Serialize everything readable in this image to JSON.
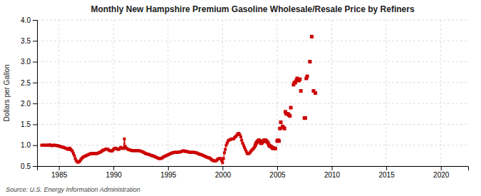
{
  "chart_data": {
    "type": "line",
    "title": "Monthly New Hampshire Premium Gasoline Wholesale/Resale Price by Refiners",
    "y_label": "Dollars per Gallon",
    "annotations": [
      "Source: U.S. Energy Information Administration"
    ],
    "xlim": [
      1983.0,
      2022.5
    ],
    "ylim": [
      0.5,
      4.0
    ],
    "xticks": [
      1985,
      1990,
      1995,
      2000,
      2005,
      2010,
      2015,
      2020
    ],
    "yticks": [
      0.5,
      {
        "value": 1.0,
        "label": "1.0"
      },
      1.5,
      {
        "value": 2.0,
        "label": "2.0"
      },
      2.5,
      {
        "value": 3.0,
        "label": "3.0"
      },
      3.5,
      {
        "value": 4.0,
        "label": "4.0"
      }
    ],
    "grid": true,
    "series": [
      {
        "type": "line",
        "marker": "square",
        "color": "#cc0000",
        "x": [
          1983.42,
          1983.5,
          1983.58,
          1983.67,
          1983.75,
          1983.83,
          1983.92,
          1984.0,
          1984.08,
          1984.17,
          1984.25,
          1984.33,
          1984.42,
          1984.5,
          1984.58,
          1984.67,
          1984.75,
          1984.83,
          1984.92,
          1985.0,
          1985.08,
          1985.17,
          1985.25,
          1985.33,
          1985.42,
          1985.5,
          1985.58,
          1985.67,
          1985.75,
          1985.83,
          1985.92,
          1986.0,
          1986.08,
          1986.17,
          1986.25,
          1986.33,
          1986.42,
          1986.5,
          1986.58,
          1986.67,
          1986.75,
          1986.83,
          1986.92,
          1987.0,
          1987.08,
          1987.17,
          1987.25,
          1987.33,
          1987.42,
          1987.5,
          1987.58,
          1987.67,
          1987.75,
          1987.83,
          1987.92,
          1988.0,
          1988.08,
          1988.17,
          1988.25,
          1988.33,
          1988.42,
          1988.5,
          1988.58,
          1988.67,
          1988.75,
          1988.83,
          1988.92,
          1989.0,
          1989.08,
          1989.17,
          1989.25,
          1989.33,
          1989.42,
          1989.5,
          1989.58,
          1989.67,
          1989.75,
          1989.83,
          1989.92,
          1990.0,
          1990.08,
          1990.17,
          1990.25,
          1990.33,
          1990.42,
          1990.5,
          1990.58,
          1990.67,
          1990.75,
          1990.83,
          1990.92,
          1991.0,
          1991.08,
          1991.17,
          1991.25,
          1991.33,
          1991.42,
          1991.5,
          1991.58,
          1991.67,
          1991.75,
          1991.83,
          1991.92,
          1992.0,
          1992.08,
          1992.17,
          1992.25,
          1992.33,
          1992.42,
          1992.5,
          1992.58,
          1992.67,
          1992.75,
          1992.83,
          1992.92,
          1993.0,
          1993.08,
          1993.17,
          1993.25,
          1993.33,
          1993.42,
          1993.5,
          1993.58,
          1993.67,
          1993.75,
          1993.83,
          1993.92,
          1994.0,
          1994.08,
          1994.17,
          1994.25,
          1994.33,
          1994.42,
          1994.5,
          1994.58,
          1994.67,
          1994.75,
          1994.83,
          1994.92,
          1995.0,
          1995.08,
          1995.17,
          1995.25,
          1995.33,
          1995.42,
          1995.5,
          1995.58,
          1995.67,
          1995.75,
          1995.83,
          1995.92,
          1996.0,
          1996.08,
          1996.17,
          1996.25,
          1996.33,
          1996.42,
          1996.5,
          1996.58,
          1996.67,
          1996.75,
          1996.83,
          1996.92,
          1997.0,
          1997.08,
          1997.17,
          1997.25,
          1997.33,
          1997.42,
          1997.5,
          1997.58,
          1997.67,
          1997.75,
          1997.83,
          1997.92,
          1998.0,
          1998.08,
          1998.17,
          1998.25,
          1998.33,
          1998.42,
          1998.5,
          1998.58,
          1998.67,
          1998.75,
          1998.83,
          1998.92,
          1999.0,
          1999.08,
          1999.17,
          1999.25,
          1999.33,
          1999.42,
          1999.5,
          1999.58,
          1999.67,
          1999.75,
          1999.83,
          1999.92,
          2000.0,
          2000.08,
          2000.17,
          2000.25,
          2000.33,
          2000.42,
          2000.5,
          2000.58,
          2000.67,
          2000.75,
          2000.83,
          2000.92,
          2001.0,
          2001.08,
          2001.17,
          2001.25,
          2001.33,
          2001.42,
          2001.5,
          2001.58,
          2001.67,
          2001.75,
          2001.83,
          2001.92,
          2002.0,
          2002.08,
          2002.17,
          2002.25,
          2002.33,
          2002.42,
          2002.5,
          2002.58,
          2002.67,
          2002.75,
          2002.83,
          2002.92
        ],
        "values": [
          1.0,
          1.0,
          1.0,
          1.0,
          1.0,
          1.0,
          1.0,
          1.0,
          1.0,
          1.01,
          1.0,
          0.99,
          0.99,
          1.0,
          1.0,
          1.0,
          0.99,
          0.99,
          0.99,
          0.98,
          0.97,
          0.97,
          0.96,
          0.95,
          0.95,
          0.94,
          0.93,
          0.92,
          0.92,
          0.9,
          0.9,
          0.93,
          0.9,
          0.88,
          0.85,
          0.8,
          0.75,
          0.68,
          0.63,
          0.61,
          0.59,
          0.6,
          0.62,
          0.65,
          0.68,
          0.7,
          0.72,
          0.73,
          0.74,
          0.75,
          0.76,
          0.77,
          0.78,
          0.79,
          0.8,
          0.8,
          0.8,
          0.8,
          0.8,
          0.8,
          0.8,
          0.8,
          0.81,
          0.82,
          0.83,
          0.84,
          0.85,
          0.88,
          0.88,
          0.89,
          0.9,
          0.91,
          0.91,
          0.9,
          0.88,
          0.87,
          0.86,
          0.86,
          0.87,
          0.9,
          0.92,
          0.93,
          0.92,
          0.91,
          0.9,
          0.9,
          0.92,
          0.95,
          0.93,
          0.93,
          0.92,
          1.15,
          0.97,
          0.93,
          0.92,
          0.9,
          0.89,
          0.89,
          0.88,
          0.87,
          0.87,
          0.87,
          0.87,
          0.87,
          0.87,
          0.87,
          0.87,
          0.87,
          0.86,
          0.86,
          0.85,
          0.84,
          0.83,
          0.82,
          0.8,
          0.8,
          0.79,
          0.78,
          0.78,
          0.77,
          0.76,
          0.75,
          0.75,
          0.74,
          0.73,
          0.72,
          0.71,
          0.7,
          0.69,
          0.68,
          0.68,
          0.68,
          0.69,
          0.7,
          0.72,
          0.73,
          0.74,
          0.75,
          0.76,
          0.77,
          0.78,
          0.79,
          0.8,
          0.81,
          0.82,
          0.82,
          0.83,
          0.83,
          0.83,
          0.83,
          0.83,
          0.83,
          0.84,
          0.84,
          0.85,
          0.86,
          0.87,
          0.86,
          0.85,
          0.85,
          0.85,
          0.84,
          0.83,
          0.83,
          0.83,
          0.83,
          0.83,
          0.83,
          0.83,
          0.82,
          0.82,
          0.81,
          0.8,
          0.79,
          0.78,
          0.78,
          0.77,
          0.76,
          0.75,
          0.74,
          0.73,
          0.72,
          0.71,
          0.7,
          0.7,
          0.69,
          0.67,
          0.65,
          0.64,
          0.63,
          0.62,
          0.62,
          0.63,
          0.65,
          0.67,
          0.68,
          0.68,
          0.68,
          0.63,
          0.58,
          0.68,
          0.82,
          0.9,
          1.0,
          1.05,
          1.1,
          1.12,
          1.13,
          1.14,
          1.15,
          1.15,
          1.15,
          1.18,
          1.2,
          1.22,
          1.25,
          1.28,
          1.28,
          1.25,
          1.2,
          1.12,
          1.05,
          1.0,
          0.95,
          0.9,
          0.85,
          0.8,
          0.8,
          0.8,
          0.82,
          0.85,
          0.88,
          0.9,
          0.92,
          0.95
        ]
      },
      {
        "type": "scatter",
        "marker": "square",
        "color": "#cc0000",
        "x": [
          2003.0,
          2003.08,
          2003.17,
          2003.25,
          2003.33,
          2003.42,
          2003.5,
          2003.58,
          2003.67,
          2003.75,
          2003.83,
          2003.92,
          2004.0,
          2004.08,
          2004.17,
          2004.25,
          2004.33,
          2004.42,
          2004.5,
          2004.58,
          2004.67,
          2004.75,
          2004.83,
          2005.0,
          2005.08,
          2005.17,
          2005.25,
          2005.33,
          2005.5,
          2005.58,
          2005.67,
          2005.75,
          2005.83,
          2006.0,
          2006.08,
          2006.17,
          2006.25,
          2006.5,
          2006.58,
          2006.67,
          2006.75,
          2006.83,
          2007.0,
          2007.08,
          2007.17,
          2007.5,
          2007.58,
          2007.67,
          2007.75,
          2008.0,
          2008.17,
          2008.33,
          2008.5
        ],
        "values": [
          1.0,
          1.05,
          1.08,
          1.1,
          1.12,
          1.1,
          1.05,
          1.05,
          1.08,
          1.1,
          1.12,
          1.12,
          1.1,
          1.08,
          1.05,
          1.0,
          0.98,
          0.97,
          0.95,
          0.93,
          0.93,
          0.92,
          0.92,
          1.1,
          1.12,
          1.1,
          1.4,
          1.55,
          1.45,
          1.42,
          1.4,
          1.8,
          1.75,
          1.75,
          1.72,
          1.7,
          1.9,
          2.45,
          2.5,
          2.5,
          2.55,
          2.6,
          2.55,
          2.58,
          2.3,
          1.65,
          1.65,
          2.6,
          2.65,
          3.0,
          3.6,
          2.3,
          2.25
        ]
      }
    ]
  }
}
